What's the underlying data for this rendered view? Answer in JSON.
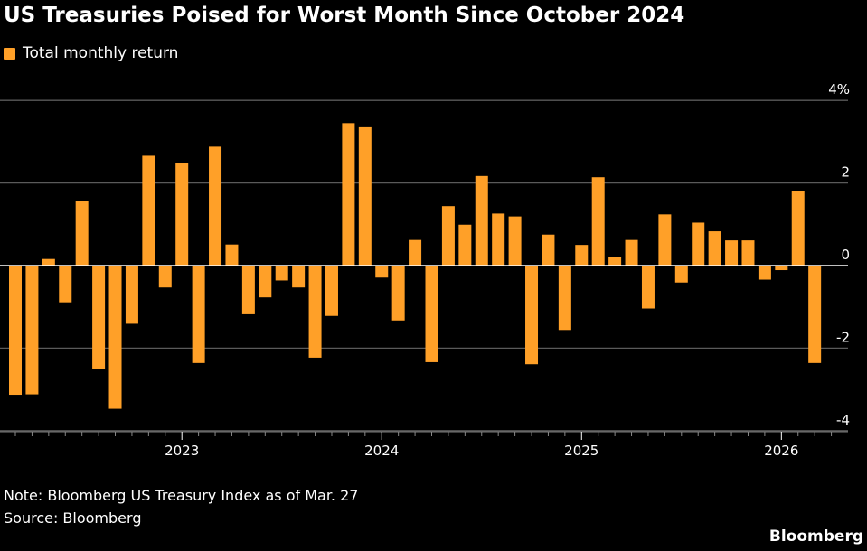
{
  "chart_data": {
    "type": "bar",
    "title": "US Treasuries Poised for Worst Month Since October 2024",
    "legend": [
      {
        "name": "Total monthly return",
        "color": "#ffa028"
      }
    ],
    "legend_placement": "top-left",
    "x_start": "2022-03",
    "x_end": "2026-03",
    "x_ticks": [
      "2023",
      "2024",
      "2025",
      "2026"
    ],
    "y_ticks": [
      "4%",
      "2",
      "0",
      "-2",
      "-4"
    ],
    "y_tick_values": [
      4,
      2,
      0,
      -2,
      -4
    ],
    "ylim": [
      -4,
      4
    ],
    "y_axis_side": "right",
    "grid": true,
    "series": [
      {
        "name": "Total monthly return",
        "color": "#ffa028",
        "values": [
          -3.13,
          -3.12,
          0.16,
          -0.89,
          1.57,
          -2.5,
          -3.47,
          -1.41,
          2.66,
          -0.53,
          2.49,
          -2.36,
          2.88,
          0.51,
          -1.18,
          -0.77,
          -0.36,
          -0.53,
          -2.23,
          -1.22,
          3.45,
          3.35,
          -0.29,
          -1.33,
          0.62,
          -2.34,
          1.44,
          0.99,
          2.17,
          1.26,
          1.19,
          -2.39,
          0.75,
          -1.56,
          0.5,
          2.14,
          0.21,
          0.62,
          -1.04,
          1.24,
          -0.41,
          1.04,
          0.83,
          0.61,
          0.61,
          -0.34,
          -0.11,
          1.8,
          -2.36
        ]
      }
    ]
  },
  "note": "Note: Bloomberg US Treasury Index as of Mar. 27",
  "source": "Source: Bloomberg",
  "brand": "Bloomberg"
}
